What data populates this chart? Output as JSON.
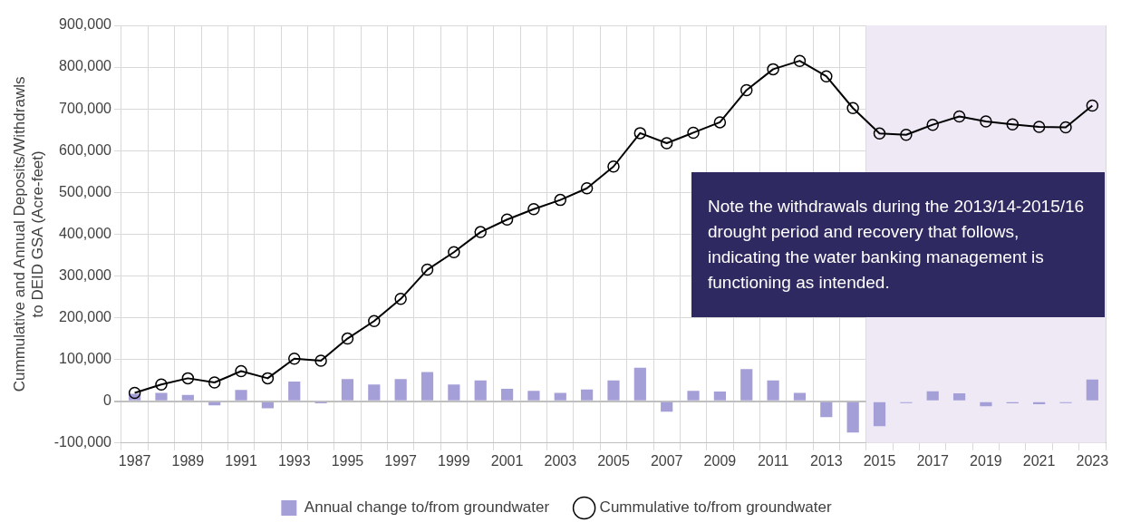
{
  "chart_data": {
    "type": "bar",
    "ylabel": "Cummulative and Annual Deposits/Withdrawls\nto DEID GSA (Acre-feet)",
    "categories": [
      "1987",
      null,
      "1989",
      null,
      "1991",
      null,
      "1993",
      null,
      "1995",
      null,
      "1997",
      null,
      "1999",
      null,
      "2001",
      null,
      "2003",
      null,
      "2005",
      null,
      "2007",
      null,
      "2009",
      null,
      "2011",
      null,
      "2013",
      null,
      "2015",
      null,
      "2017",
      null,
      "2019",
      null,
      "2021",
      null,
      "2023"
    ],
    "series": [
      {
        "name": "Annual change to/from groundwater",
        "color": "#a59fd8",
        "values": [
          18000,
          20000,
          15000,
          -10000,
          27000,
          -17000,
          47000,
          -5000,
          53000,
          40000,
          53000,
          70000,
          40000,
          50000,
          30000,
          25000,
          20000,
          28000,
          50000,
          80000,
          -25000,
          25000,
          23000,
          77000,
          50000,
          20000,
          -38000,
          -75000,
          -60000,
          -2000,
          24000,
          19000,
          -12000,
          -5000,
          -7000,
          -1000,
          52000
        ]
      },
      {
        "name": "Cummulative to/from groundwater",
        "type": "line",
        "color": "#000000",
        "marker": "circle",
        "values": [
          20000,
          40000,
          55000,
          45000,
          72000,
          55000,
          102000,
          97000,
          150000,
          192000,
          245000,
          315000,
          357000,
          405000,
          435000,
          460000,
          482000,
          510000,
          562000,
          642000,
          618000,
          643000,
          668000,
          745000,
          795000,
          815000,
          778000,
          702000,
          641000,
          638000,
          662000,
          682000,
          670000,
          663000,
          657000,
          656000,
          708000
        ]
      }
    ],
    "ylim": [
      -100000,
      900000
    ],
    "yticks": [
      {
        "value": -100000,
        "label": "-100,000"
      },
      {
        "value": 0,
        "label": "0"
      },
      {
        "value": 100000,
        "label": "100,000"
      },
      {
        "value": 200000,
        "label": "200,000"
      },
      {
        "value": 300000,
        "label": "300,000"
      },
      {
        "value": 400000,
        "label": "400,000"
      },
      {
        "value": 500000,
        "label": "500,000"
      },
      {
        "value": 600000,
        "label": "600,000"
      },
      {
        "value": 700000,
        "label": "700,000"
      },
      {
        "value": 800000,
        "label": "800,000"
      },
      {
        "value": 900000,
        "label": "900,000"
      }
    ],
    "bands": [
      {
        "axis": "x",
        "from": "2015",
        "to": "2023",
        "color": "#efe9f6"
      }
    ],
    "annotations": [
      "Note the withdrawals during the 2013/14-2015/16 drought period and recovery that follows, indicating the water banking management is functioning as intended."
    ],
    "grid": true,
    "legend": "bottom"
  }
}
